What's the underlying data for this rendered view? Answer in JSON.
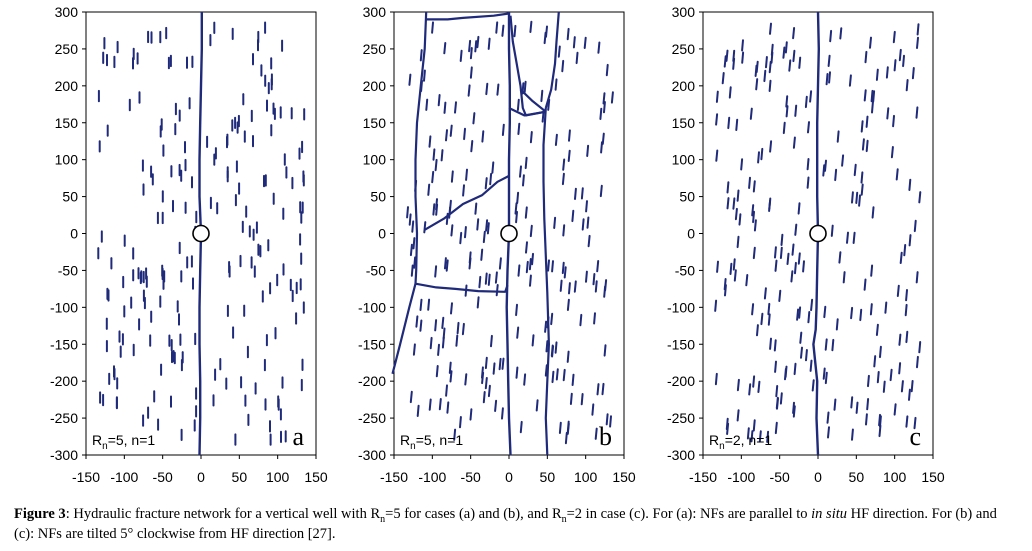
{
  "chart_data": [
    {
      "type": "scatter",
      "panel_letter": "a",
      "label_prefix": "R",
      "label_sub": "n",
      "label_suffix": "=5, n=1",
      "xlim": [
        -150,
        150
      ],
      "ylim": [
        -300,
        300
      ],
      "xticks": [
        -150,
        -100,
        -50,
        0,
        50,
        100,
        150
      ],
      "yticks": [
        300,
        250,
        200,
        150,
        100,
        50,
        0,
        -50,
        -100,
        -150,
        -200,
        -250,
        -300
      ],
      "nf_tilt_deg": 0,
      "well": [
        0,
        0
      ],
      "hf_path": [
        [
          1,
          300
        ],
        [
          1,
          250
        ],
        [
          0,
          200
        ],
        [
          -1,
          150
        ],
        [
          -2,
          100
        ],
        [
          -2,
          50
        ],
        [
          0,
          0
        ],
        [
          -1,
          -50
        ],
        [
          -2,
          -100
        ],
        [
          -2,
          -150
        ],
        [
          -1,
          -200
        ],
        [
          -1,
          -250
        ],
        [
          -2,
          -300
        ]
      ],
      "hf_branches": []
    },
    {
      "type": "scatter",
      "panel_letter": "b",
      "label_prefix": "R",
      "label_sub": "n",
      "label_suffix": "=5, n=1",
      "xlim": [
        -150,
        150
      ],
      "ylim": [
        -300,
        300
      ],
      "xticks": [
        -150,
        -100,
        -50,
        0,
        50,
        100,
        150
      ],
      "yticks": [
        300,
        250,
        200,
        150,
        100,
        50,
        0,
        -50,
        -100,
        -150,
        -200,
        -250,
        -300
      ],
      "nf_tilt_deg": 5,
      "well": [
        0,
        0
      ],
      "hf_path": [
        [
          0,
          300
        ],
        [
          0,
          250
        ],
        [
          1,
          200
        ],
        [
          1,
          150
        ],
        [
          0,
          100
        ],
        [
          0,
          50
        ],
        [
          0,
          0
        ],
        [
          -2,
          -50
        ],
        [
          -3,
          -100
        ],
        [
          -2,
          -150
        ],
        [
          -1,
          -200
        ],
        [
          0,
          -250
        ],
        [
          2,
          -300
        ]
      ],
      "hf_branches": [
        [
          [
            -108,
            300
          ],
          [
            -110,
            250
          ],
          [
            -115,
            200
          ],
          [
            -120,
            150
          ],
          [
            -122,
            100
          ],
          [
            -122,
            50
          ],
          [
            -120,
            0
          ],
          [
            -121,
            -50
          ],
          [
            -122,
            -68
          ]
        ],
        [
          [
            -108,
            290
          ],
          [
            -80,
            290
          ],
          [
            -60,
            292
          ],
          [
            -20,
            295
          ],
          [
            0,
            298
          ]
        ],
        [
          [
            -122,
            -68
          ],
          [
            -95,
            -73
          ],
          [
            -70,
            -75
          ],
          [
            -40,
            -78
          ],
          [
            -5,
            -79
          ],
          [
            -2,
            -70
          ]
        ],
        [
          [
            -122,
            -68
          ],
          [
            -130,
            -100
          ],
          [
            -142,
            -150
          ],
          [
            -152,
            -190
          ]
        ],
        [
          [
            -110,
            5
          ],
          [
            -85,
            20
          ],
          [
            -60,
            40
          ],
          [
            -35,
            52
          ],
          [
            -15,
            70
          ],
          [
            0,
            78
          ]
        ],
        [
          [
            2,
            295
          ],
          [
            5,
            260
          ],
          [
            10,
            230
          ],
          [
            15,
            200
          ],
          [
            18,
            170
          ],
          [
            22,
            160
          ],
          [
            48,
            165
          ]
        ],
        [
          [
            0,
            170
          ],
          [
            20,
            160
          ],
          [
            48,
            165
          ]
        ],
        [
          [
            48,
            170
          ],
          [
            45,
            120
          ],
          [
            45,
            70
          ],
          [
            46,
            20
          ],
          [
            48,
            -30
          ],
          [
            50,
            -80
          ],
          [
            52,
            -150
          ],
          [
            50,
            -200
          ],
          [
            48,
            -250
          ],
          [
            50,
            -300
          ]
        ],
        [
          [
            48,
            170
          ],
          [
            55,
            195
          ],
          [
            60,
            230
          ],
          [
            62,
            260
          ],
          [
            65,
            300
          ]
        ],
        [
          [
            15,
            195
          ],
          [
            30,
            180
          ],
          [
            48,
            165
          ]
        ]
      ]
    },
    {
      "type": "scatter",
      "panel_letter": "c",
      "label_prefix": "R",
      "label_sub": "n",
      "label_suffix": "=2, n=1",
      "xlim": [
        -150,
        150
      ],
      "ylim": [
        -300,
        300
      ],
      "xticks": [
        -150,
        -100,
        -50,
        0,
        50,
        100,
        150
      ],
      "yticks": [
        300,
        250,
        200,
        150,
        100,
        50,
        0,
        -50,
        -100,
        -150,
        -200,
        -250,
        -300
      ],
      "nf_tilt_deg": 5,
      "well": [
        0,
        0
      ],
      "hf_path": [
        [
          0,
          300
        ],
        [
          1,
          250
        ],
        [
          0,
          200
        ],
        [
          -1,
          150
        ],
        [
          -1,
          100
        ],
        [
          -1,
          50
        ],
        [
          0,
          0
        ],
        [
          -1,
          -50
        ],
        [
          -2,
          -100
        ],
        [
          -3,
          -130
        ],
        [
          -6,
          -150
        ],
        [
          -4,
          -170
        ],
        [
          -1,
          -200
        ],
        [
          -2,
          -250
        ],
        [
          0,
          -300
        ]
      ],
      "hf_branches": []
    }
  ],
  "caption": {
    "fig_label": "Figure 3",
    "part1": ": Hydraulic fracture network for a vertical well with R",
    "sub1": "n",
    "part2": "=5 for cases (a) and (b), and R",
    "sub2": "n",
    "part3": "=2 in case (c). For (a): NFs are parallel to ",
    "italic": "in situ",
    "part4": "  HF direction. For (b) and (c): NFs are tilted 5° clockwise from HF direction [27]."
  },
  "colors": {
    "fracture": "#1f2a7a",
    "axis": "#000000"
  }
}
